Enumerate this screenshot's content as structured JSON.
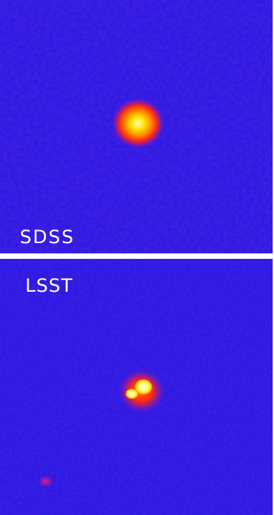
{
  "panels": [
    {
      "label": "SDSS"
    },
    {
      "label": "LSST"
    }
  ],
  "colors": {
    "background": "#2a1ae6",
    "core": "#ffffc8",
    "mid": "#ffd000",
    "halo": "#ff3000",
    "label": "#ffffff"
  }
}
